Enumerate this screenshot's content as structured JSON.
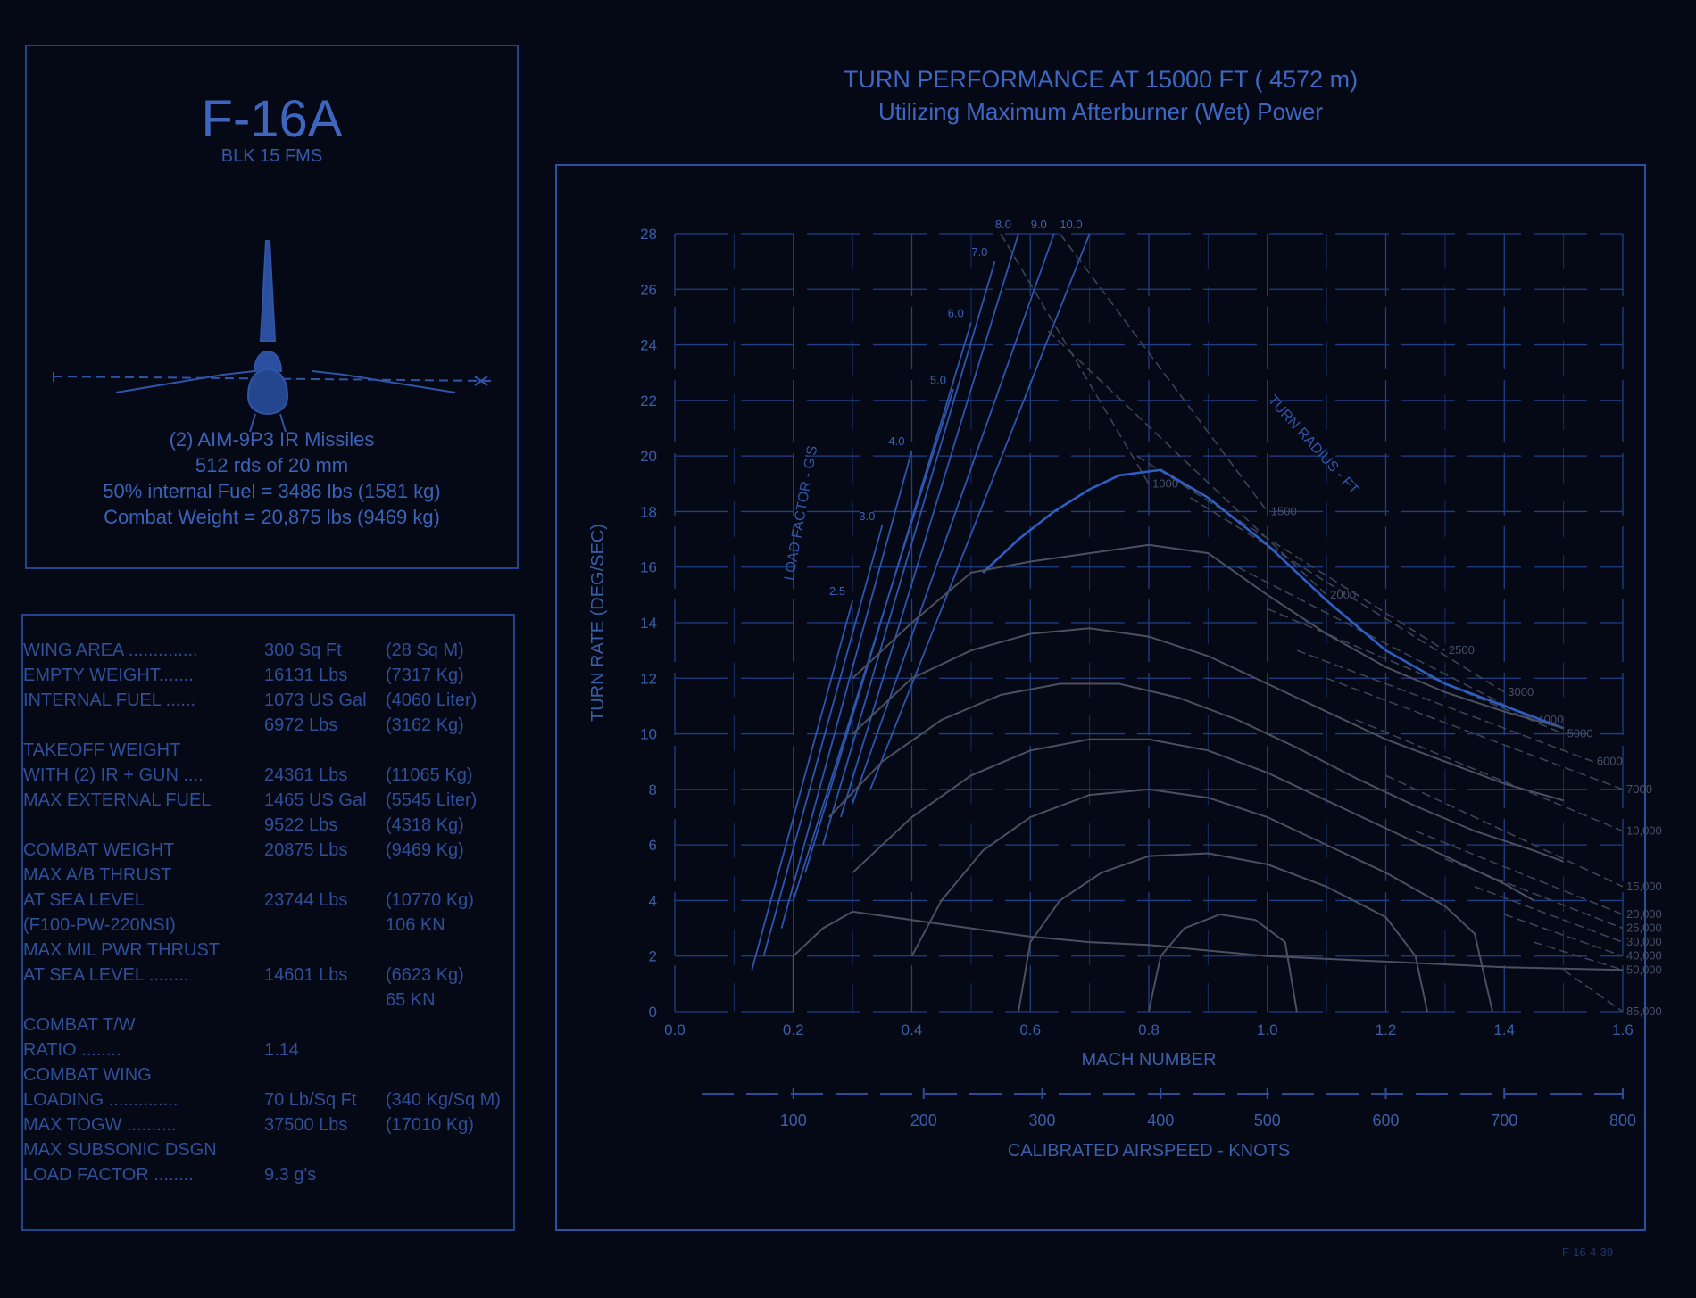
{
  "aircraft": {
    "name": "F-16A",
    "subtitle": "BLK 15 FMS",
    "lines": [
      "(2) AIM-9P3 IR Missiles",
      "512 rds of 20 mm",
      "50% internal Fuel = 3486  lbs (1581 kg)",
      "Combat Weight = 20,875 lbs (9469 kg)"
    ]
  },
  "specs": [
    [
      "WING AREA ..............",
      "300 Sq Ft",
      "(28 Sq M)"
    ],
    [
      "EMPTY WEIGHT.......",
      "16131 Lbs",
      "(7317 Kg)"
    ],
    [
      "INTERNAL FUEL ......",
      "1073 US Gal",
      "(4060 Liter)"
    ],
    [
      "",
      "6972 Lbs",
      "(3162 Kg)"
    ],
    [
      "TAKEOFF WEIGHT",
      "",
      ""
    ],
    [
      "WITH (2) IR + GUN ....",
      "24361 Lbs",
      "(11065 Kg)"
    ],
    [
      "MAX EXTERNAL FUEL",
      "1465 US Gal",
      "(5545 Liter)"
    ],
    [
      "",
      "9522 Lbs",
      "(4318 Kg)"
    ],
    [
      "COMBAT WEIGHT",
      "20875 Lbs",
      "(9469 Kg)"
    ],
    [
      "MAX A/B THRUST",
      "",
      ""
    ],
    [
      "AT SEA LEVEL",
      "23744 Lbs",
      "(10770 Kg)"
    ],
    [
      "(F100-PW-220NSI)",
      "",
      "106 KN"
    ],
    [
      "MAX MIL PWR THRUST",
      "",
      ""
    ],
    [
      "AT SEA LEVEL ........",
      "14601 Lbs",
      "(6623 Kg)"
    ],
    [
      "",
      "",
      "65 KN"
    ],
    [
      "COMBAT T/W",
      "",
      ""
    ],
    [
      "RATIO ........",
      "1.14",
      ""
    ],
    [
      "COMBAT WING",
      "",
      ""
    ],
    [
      "LOADING ..............",
      "70 Lb/Sq Ft",
      "(340 Kg/Sq M)"
    ],
    [
      "MAX TOGW ..........",
      "37500 Lbs",
      "(17010 Kg)"
    ],
    [
      "MAX SUBSONIC DSGN",
      "",
      ""
    ],
    [
      "LOAD FACTOR ........",
      "9.3 g's",
      ""
    ]
  ],
  "ref_number": "F-16-4-39",
  "colors": {
    "background": "#050815",
    "frame": "#2a509e",
    "text": "#3b62b4",
    "grid": "#1f3f86",
    "sustained_curve": "#2f5fc4",
    "curves_grey": "#4a5060"
  },
  "chart_data": {
    "type": "line",
    "title": "TURN PERFORMANCE AT 15000 FT ( 4572 m)",
    "subtitle": "Utilizing Maximum Afterburner (Wet) Power",
    "xlabel": "MACH NUMBER",
    "x2label": "CALIBRATED AIRSPEED - KNOTS",
    "ylabel": "TURN RATE (DEG/SEC)",
    "xlim": [
      0.0,
      1.6
    ],
    "ylim": [
      0,
      28
    ],
    "x_ticks": [
      "0.0",
      "0.2",
      "0.4",
      "0.6",
      "0.8",
      "1.0",
      "1.2",
      "1.4",
      "1.6"
    ],
    "y_ticks": [
      "0",
      "2",
      "4",
      "6",
      "8",
      "10",
      "12",
      "14",
      "16",
      "18",
      "20",
      "22",
      "24",
      "26",
      "28"
    ],
    "cas_ticks": [
      {
        "mach": 0.2,
        "label": "100"
      },
      {
        "mach": 0.42,
        "label": "200"
      },
      {
        "mach": 0.62,
        "label": "300"
      },
      {
        "mach": 0.82,
        "label": "400"
      },
      {
        "mach": 1.0,
        "label": "500"
      },
      {
        "mach": 1.2,
        "label": "600"
      },
      {
        "mach": 1.4,
        "label": "700"
      },
      {
        "mach": 1.6,
        "label": "800"
      }
    ],
    "load_factor_label": "LOAD FACTOR - G'S",
    "load_factor_lines": [
      {
        "label": "2.5",
        "points": [
          [
            0.13,
            1.5
          ],
          [
            0.3,
            14.8
          ]
        ]
      },
      {
        "label": "3.0",
        "points": [
          [
            0.15,
            2.0
          ],
          [
            0.35,
            17.5
          ]
        ]
      },
      {
        "label": "4.0",
        "points": [
          [
            0.18,
            3.0
          ],
          [
            0.4,
            20.2
          ]
        ]
      },
      {
        "label": "5.0",
        "points": [
          [
            0.2,
            4.0
          ],
          [
            0.47,
            22.4
          ]
        ]
      },
      {
        "label": "6.0",
        "points": [
          [
            0.22,
            5.0
          ],
          [
            0.5,
            24.8
          ]
        ]
      },
      {
        "label": "7.0",
        "points": [
          [
            0.25,
            6.0
          ],
          [
            0.54,
            27.0
          ]
        ]
      },
      {
        "label": "8.0",
        "points": [
          [
            0.28,
            7.0
          ],
          [
            0.58,
            28.0
          ]
        ]
      },
      {
        "label": "9.0",
        "points": [
          [
            0.3,
            7.5
          ],
          [
            0.64,
            28.0
          ]
        ]
      },
      {
        "label": "10.0",
        "points": [
          [
            0.33,
            8.0
          ],
          [
            0.7,
            28.0
          ]
        ]
      }
    ],
    "turn_radius_label": "TURN RADIUS - FT",
    "turn_radius_lines": [
      {
        "label": "1000",
        "points": [
          [
            0.55,
            28.0
          ],
          [
            0.8,
            19.0
          ]
        ]
      },
      {
        "label": "1500",
        "points": [
          [
            0.65,
            28.0
          ],
          [
            1.0,
            18.0
          ]
        ]
      },
      {
        "label": "2000",
        "points": [
          [
            0.63,
            24.5
          ],
          [
            1.1,
            15.0
          ]
        ]
      },
      {
        "label": "2500",
        "points": [
          [
            0.78,
            20.0
          ],
          [
            1.3,
            13.0
          ]
        ]
      },
      {
        "label": "3000",
        "points": [
          [
            0.87,
            18.5
          ],
          [
            1.4,
            11.5
          ]
        ]
      },
      {
        "label": "4000",
        "points": [
          [
            0.95,
            16.0
          ],
          [
            1.45,
            10.5
          ]
        ]
      },
      {
        "label": "5000",
        "points": [
          [
            1.0,
            14.5
          ],
          [
            1.5,
            10.0
          ]
        ]
      },
      {
        "label": "6000",
        "points": [
          [
            1.05,
            13.0
          ],
          [
            1.55,
            9.0
          ]
        ]
      },
      {
        "label": "7000",
        "points": [
          [
            1.1,
            12.0
          ],
          [
            1.6,
            8.0
          ]
        ]
      },
      {
        "label": "10,000",
        "points": [
          [
            1.15,
            10.5
          ],
          [
            1.6,
            6.5
          ]
        ]
      },
      {
        "label": "15,000",
        "points": [
          [
            1.2,
            8.5
          ],
          [
            1.6,
            4.5
          ]
        ]
      },
      {
        "label": "20,000",
        "points": [
          [
            1.25,
            6.5
          ],
          [
            1.6,
            3.5
          ]
        ]
      },
      {
        "label": "25,000",
        "points": [
          [
            1.3,
            5.5
          ],
          [
            1.6,
            3.0
          ]
        ]
      },
      {
        "label": "30,000",
        "points": [
          [
            1.35,
            4.5
          ],
          [
            1.6,
            2.5
          ]
        ]
      },
      {
        "label": "40,000",
        "points": [
          [
            1.4,
            3.5
          ],
          [
            1.6,
            2.0
          ]
        ]
      },
      {
        "label": "50,000",
        "points": [
          [
            1.45,
            2.5
          ],
          [
            1.6,
            1.5
          ]
        ]
      },
      {
        "label": "85,000",
        "points": [
          [
            1.5,
            1.5
          ],
          [
            1.6,
            0.0
          ]
        ]
      }
    ],
    "series": [
      {
        "points": [
          [
            0.52,
            15.8
          ],
          [
            0.58,
            17.0
          ],
          [
            0.64,
            18.0
          ],
          [
            0.7,
            18.8
          ],
          [
            0.75,
            19.3
          ],
          [
            0.82,
            19.5
          ],
          [
            0.9,
            18.5
          ],
          [
            1.0,
            16.8
          ],
          [
            1.1,
            14.8
          ],
          [
            1.2,
            13.0
          ],
          [
            1.3,
            11.8
          ],
          [
            1.4,
            11.0
          ],
          [
            1.5,
            10.2
          ]
        ]
      },
      {
        "points": [
          [
            0.3,
            12.0
          ],
          [
            0.4,
            14.0
          ],
          [
            0.5,
            15.8
          ],
          [
            0.6,
            16.2
          ],
          [
            0.7,
            16.5
          ],
          [
            0.8,
            16.8
          ],
          [
            0.9,
            16.5
          ],
          [
            1.0,
            15.0
          ],
          [
            1.1,
            13.6
          ],
          [
            1.2,
            12.4
          ],
          [
            1.3,
            11.5
          ],
          [
            1.4,
            10.8
          ],
          [
            1.5,
            10.2
          ]
        ]
      },
      {
        "points": [
          [
            0.3,
            10.0
          ],
          [
            0.4,
            12.0
          ],
          [
            0.5,
            13.0
          ],
          [
            0.6,
            13.6
          ],
          [
            0.7,
            13.8
          ],
          [
            0.8,
            13.5
          ],
          [
            0.9,
            12.8
          ],
          [
            1.0,
            11.8
          ],
          [
            1.1,
            10.8
          ],
          [
            1.2,
            9.8
          ],
          [
            1.3,
            9.0
          ],
          [
            1.4,
            8.2
          ],
          [
            1.5,
            7.6
          ]
        ]
      },
      {
        "points": [
          [
            0.26,
            7.0
          ],
          [
            0.35,
            9.0
          ],
          [
            0.45,
            10.5
          ],
          [
            0.55,
            11.4
          ],
          [
            0.65,
            11.8
          ],
          [
            0.75,
            11.8
          ],
          [
            0.85,
            11.3
          ],
          [
            0.95,
            10.5
          ],
          [
            1.05,
            9.5
          ],
          [
            1.15,
            8.4
          ],
          [
            1.25,
            7.4
          ],
          [
            1.35,
            6.5
          ],
          [
            1.45,
            5.8
          ],
          [
            1.5,
            5.4
          ]
        ]
      },
      {
        "points": [
          [
            0.3,
            5.0
          ],
          [
            0.4,
            7.0
          ],
          [
            0.5,
            8.5
          ],
          [
            0.6,
            9.4
          ],
          [
            0.7,
            9.8
          ],
          [
            0.8,
            9.8
          ],
          [
            0.9,
            9.4
          ],
          [
            1.0,
            8.6
          ],
          [
            1.1,
            7.6
          ],
          [
            1.2,
            6.6
          ],
          [
            1.3,
            5.6
          ],
          [
            1.4,
            4.6
          ],
          [
            1.45,
            4.0
          ]
        ]
      },
      {
        "points": [
          [
            0.4,
            2.0
          ],
          [
            0.45,
            4.0
          ],
          [
            0.52,
            5.8
          ],
          [
            0.6,
            7.0
          ],
          [
            0.7,
            7.8
          ],
          [
            0.8,
            8.0
          ],
          [
            0.9,
            7.7
          ],
          [
            1.0,
            7.0
          ],
          [
            1.1,
            6.0
          ],
          [
            1.2,
            5.0
          ],
          [
            1.3,
            3.8
          ],
          [
            1.35,
            2.8
          ],
          [
            1.38,
            0.0
          ]
        ]
      },
      {
        "points": [
          [
            0.58,
            0.0
          ],
          [
            0.6,
            2.5
          ],
          [
            0.65,
            4.0
          ],
          [
            0.72,
            5.0
          ],
          [
            0.8,
            5.6
          ],
          [
            0.9,
            5.7
          ],
          [
            1.0,
            5.3
          ],
          [
            1.1,
            4.5
          ],
          [
            1.2,
            3.4
          ],
          [
            1.25,
            2.0
          ],
          [
            1.27,
            0.0
          ]
        ]
      },
      {
        "points": [
          [
            0.8,
            0.0
          ],
          [
            0.82,
            2.0
          ],
          [
            0.86,
            3.0
          ],
          [
            0.92,
            3.5
          ],
          [
            0.98,
            3.3
          ],
          [
            1.03,
            2.5
          ],
          [
            1.05,
            0.0
          ]
        ]
      },
      {
        "points": [
          [
            0.2,
            0.0
          ],
          [
            0.2,
            2.0
          ],
          [
            0.25,
            3.0
          ],
          [
            0.3,
            3.6
          ],
          [
            0.4,
            3.3
          ],
          [
            0.5,
            3.0
          ],
          [
            0.6,
            2.7
          ],
          [
            0.7,
            2.5
          ],
          [
            0.8,
            2.4
          ],
          [
            0.9,
            2.2
          ],
          [
            1.0,
            2.0
          ],
          [
            1.2,
            1.8
          ],
          [
            1.4,
            1.6
          ],
          [
            1.6,
            1.5
          ]
        ]
      }
    ]
  }
}
